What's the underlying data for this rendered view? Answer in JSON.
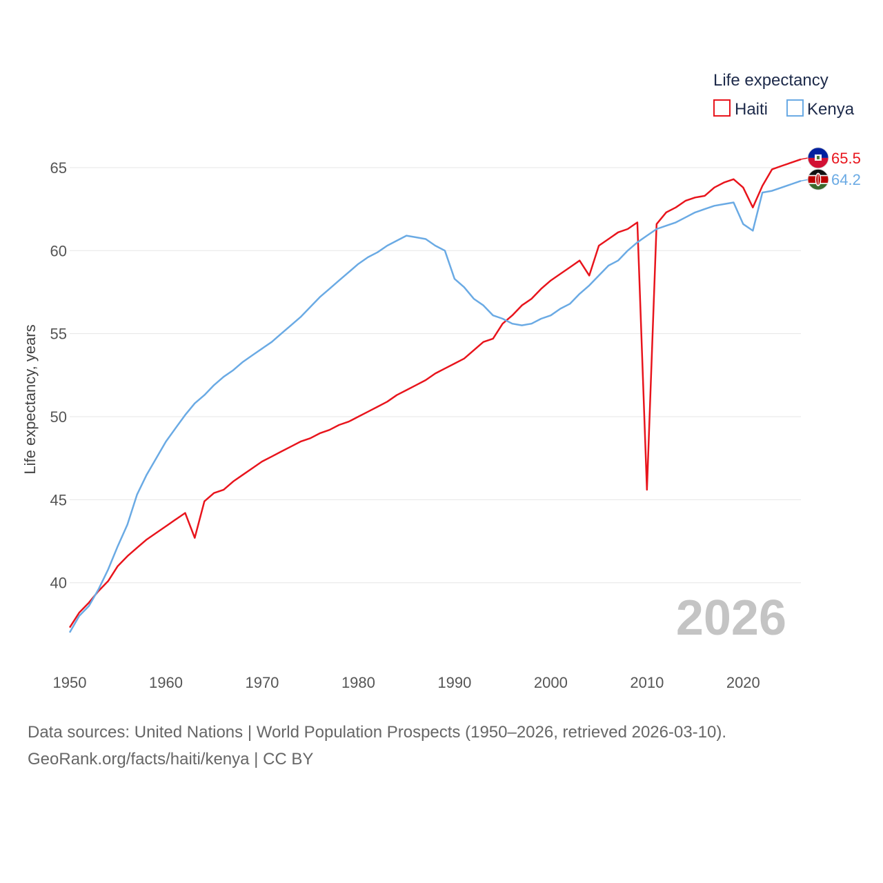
{
  "chart_data": {
    "type": "line",
    "xlabel": "",
    "ylabel": "Life expectancy, years",
    "xlim": [
      1950,
      2026
    ],
    "ylim": [
      35.5,
      67.2
    ],
    "xticks": [
      1950,
      1960,
      1970,
      1980,
      1990,
      2000,
      2010,
      2020
    ],
    "yticks": [
      40,
      45,
      50,
      55,
      60,
      65
    ],
    "grid": "horizontal",
    "legend": {
      "title": "Life expectancy",
      "placement": "top-right"
    },
    "year_watermark": "2026",
    "x": [
      1950,
      1951,
      1952,
      1953,
      1954,
      1955,
      1956,
      1957,
      1958,
      1959,
      1960,
      1961,
      1962,
      1963,
      1964,
      1965,
      1966,
      1967,
      1968,
      1969,
      1970,
      1971,
      1972,
      1973,
      1974,
      1975,
      1976,
      1977,
      1978,
      1979,
      1980,
      1981,
      1982,
      1983,
      1984,
      1985,
      1986,
      1987,
      1988,
      1989,
      1990,
      1991,
      1992,
      1993,
      1994,
      1995,
      1996,
      1997,
      1998,
      1999,
      2000,
      2001,
      2002,
      2003,
      2004,
      2005,
      2006,
      2007,
      2008,
      2009,
      2010,
      2011,
      2012,
      2013,
      2014,
      2015,
      2016,
      2017,
      2018,
      2019,
      2020,
      2021,
      2022,
      2023,
      2024,
      2025,
      2026
    ],
    "series": [
      {
        "name": "Haiti",
        "color": "#e8141c",
        "end_label": "65.5",
        "flag_icon": "haiti-flag-icon",
        "values": [
          37.3,
          38.2,
          38.8,
          39.5,
          40.1,
          41.0,
          41.6,
          42.1,
          42.6,
          43.0,
          43.4,
          43.8,
          44.2,
          42.7,
          44.9,
          45.4,
          45.6,
          46.1,
          46.5,
          46.9,
          47.3,
          47.6,
          47.9,
          48.2,
          48.5,
          48.7,
          49.0,
          49.2,
          49.5,
          49.7,
          50.0,
          50.3,
          50.6,
          50.9,
          51.3,
          51.6,
          51.9,
          52.2,
          52.6,
          52.9,
          53.2,
          53.5,
          54.0,
          54.5,
          54.7,
          55.6,
          56.1,
          56.7,
          57.1,
          57.7,
          58.2,
          58.6,
          59.0,
          59.4,
          58.5,
          60.3,
          60.7,
          61.1,
          61.3,
          61.7,
          45.6,
          61.6,
          62.3,
          62.6,
          63.0,
          63.2,
          63.3,
          63.8,
          64.1,
          64.3,
          63.8,
          62.6,
          63.9,
          64.9,
          65.1,
          65.3,
          65.5
        ]
      },
      {
        "name": "Kenya",
        "color": "#6aaae4",
        "end_label": "64.2",
        "flag_icon": "kenya-flag-icon",
        "values": [
          37.0,
          38.0,
          38.6,
          39.6,
          40.8,
          42.2,
          43.5,
          45.3,
          46.5,
          47.5,
          48.5,
          49.3,
          50.1,
          50.8,
          51.3,
          51.9,
          52.4,
          52.8,
          53.3,
          53.7,
          54.1,
          54.5,
          55.0,
          55.5,
          56.0,
          56.6,
          57.2,
          57.7,
          58.2,
          58.7,
          59.2,
          59.6,
          59.9,
          60.3,
          60.6,
          60.9,
          60.8,
          60.7,
          60.3,
          60.0,
          58.3,
          57.8,
          57.1,
          56.7,
          56.1,
          55.9,
          55.6,
          55.5,
          55.6,
          55.9,
          56.1,
          56.5,
          56.8,
          57.4,
          57.9,
          58.5,
          59.1,
          59.4,
          60.0,
          60.5,
          60.9,
          61.3,
          61.5,
          61.7,
          62.0,
          62.3,
          62.5,
          62.7,
          62.8,
          62.9,
          61.6,
          61.2,
          63.5,
          63.6,
          63.8,
          64.0,
          64.2
        ]
      }
    ]
  },
  "source": {
    "line1": "Data sources: United Nations | World Population Prospects (1950–2026, retrieved 2026-03-10).",
    "line2": "GeoRank.org/facts/haiti/kenya | CC BY"
  }
}
